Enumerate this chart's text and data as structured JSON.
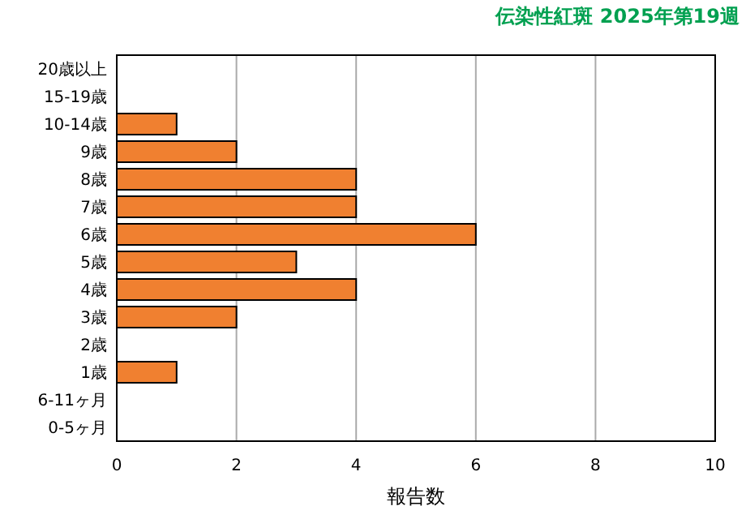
{
  "chart_data": {
    "type": "bar",
    "orientation": "horizontal",
    "title": "伝染性紅斑 2025年第19週",
    "xlabel": "報告数",
    "categories": [
      "20歳以上",
      "15-19歳",
      "10-14歳",
      "9歳",
      "8歳",
      "7歳",
      "6歳",
      "5歳",
      "4歳",
      "3歳",
      "2歳",
      "1歳",
      "6-11ヶ月",
      "0-5ヶ月"
    ],
    "values": [
      0,
      0,
      1,
      2,
      4,
      4,
      6,
      3,
      4,
      2,
      0,
      1,
      0,
      0
    ],
    "color": "#f08030",
    "xlim": [
      0,
      10
    ],
    "xticks": [
      0,
      2,
      4,
      6,
      8,
      10
    ],
    "grid": "x"
  }
}
